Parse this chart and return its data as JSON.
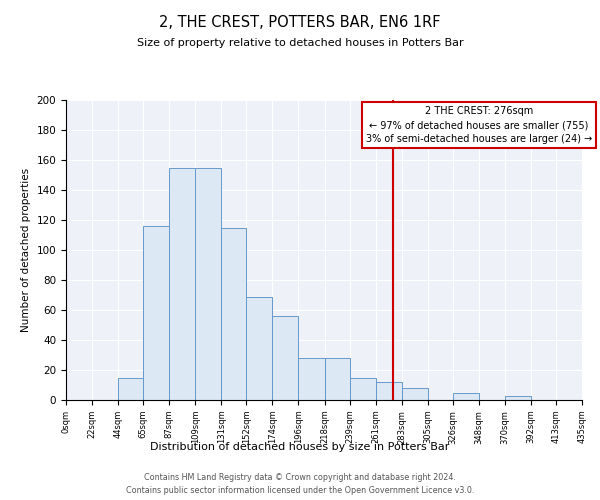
{
  "title": "2, THE CREST, POTTERS BAR, EN6 1RF",
  "subtitle": "Size of property relative to detached houses in Potters Bar",
  "xlabel": "Distribution of detached houses by size in Potters Bar",
  "ylabel": "Number of detached properties",
  "bin_labels": [
    "0sqm",
    "22sqm",
    "44sqm",
    "65sqm",
    "87sqm",
    "109sqm",
    "131sqm",
    "152sqm",
    "174sqm",
    "196sqm",
    "218sqm",
    "239sqm",
    "261sqm",
    "283sqm",
    "305sqm",
    "326sqm",
    "348sqm",
    "370sqm",
    "392sqm",
    "413sqm",
    "435sqm"
  ],
  "bar_heights": [
    0,
    0,
    15,
    116,
    155,
    155,
    115,
    69,
    56,
    28,
    28,
    15,
    12,
    8,
    0,
    5,
    0,
    3,
    0,
    0
  ],
  "bar_color": "#dce8f4",
  "bar_edge_color": "#6699cc",
  "vline_x": 276,
  "annotation_line1": "2 THE CREST: 276sqm",
  "annotation_line2": "← 97% of detached houses are smaller (755)",
  "annotation_line3": "3% of semi-detached houses are larger (24) →",
  "footer_line1": "Contains HM Land Registry data © Crown copyright and database right 2024.",
  "footer_line2": "Contains public sector information licensed under the Open Government Licence v3.0.",
  "ylim": [
    0,
    200
  ],
  "yticks": [
    0,
    20,
    40,
    60,
    80,
    100,
    120,
    140,
    160,
    180,
    200
  ],
  "bin_edges": [
    0,
    22,
    44,
    65,
    87,
    109,
    131,
    152,
    174,
    196,
    218,
    239,
    261,
    283,
    305,
    326,
    348,
    370,
    392,
    413,
    435
  ],
  "background_color": "#eef2f8",
  "grid_color": "#ffffff",
  "vline_color": "#cc0000"
}
